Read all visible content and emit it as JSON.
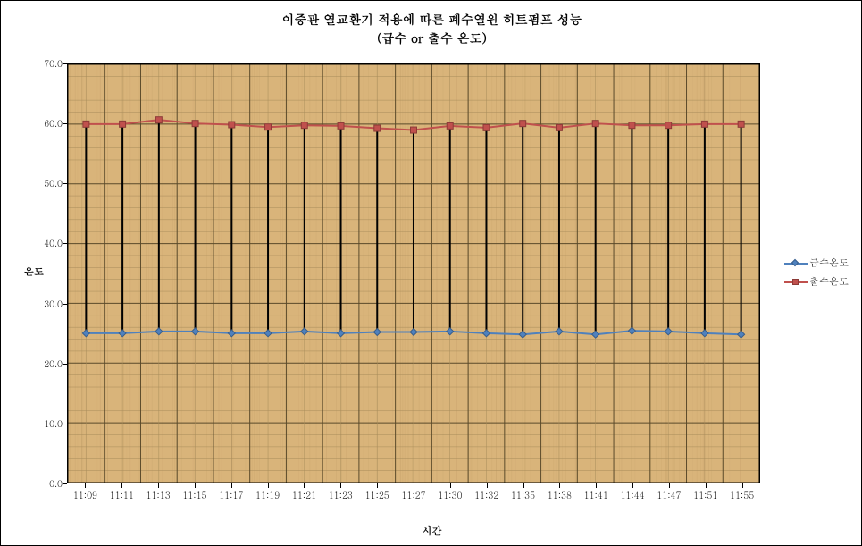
{
  "chart": {
    "type": "line",
    "title_line1": "이중관 열교환기 적용에 따른 폐수열원 히트펌프 성능",
    "title_line2": "(급수 or 출수 온도)",
    "title_fontsize": 14,
    "xlabel": "시간",
    "ylabel": "온도",
    "label_fontsize": 11,
    "tick_fontsize": 10,
    "plot_bg_color": "#d9b47a",
    "grid_major_color": "#5a4a2a",
    "grid_minor_color": "#a88c5a",
    "border_color": "#000000",
    "outer_bg_color": "#ffffff",
    "ylim": [
      0.0,
      70.0
    ],
    "ytick_step": 10.0,
    "yticks": [
      0.0,
      10.0,
      20.0,
      30.0,
      40.0,
      50.0,
      60.0,
      70.0
    ],
    "xticks": [
      "11:09",
      "11:11",
      "11:13",
      "11:15",
      "11:17",
      "11:19",
      "11:21",
      "11:23",
      "11:25",
      "11:27",
      "11:30",
      "11:32",
      "11:35",
      "11:38",
      "11:41",
      "11:44",
      "11:47",
      "11:51",
      "11:55"
    ],
    "series": [
      {
        "name": "급수온도",
        "color": "#4f81bd",
        "marker": "diamond",
        "marker_fill": "#4f81bd",
        "marker_border": "#385d8a",
        "line_width": 2,
        "values": [
          25.0,
          25.0,
          25.3,
          25.3,
          25.0,
          25.0,
          25.3,
          25.0,
          25.2,
          25.2,
          25.3,
          25.0,
          24.8,
          25.3,
          24.8,
          25.4,
          25.3,
          25.0,
          24.8
        ]
      },
      {
        "name": "출수온도",
        "color": "#c0504d",
        "marker": "square",
        "marker_fill": "#c0504d",
        "marker_border": "#8c3a37",
        "line_width": 2,
        "values": [
          60.0,
          60.0,
          60.7,
          60.1,
          59.9,
          59.5,
          59.8,
          59.7,
          59.3,
          59.0,
          59.7,
          59.4,
          60.1,
          59.4,
          60.1,
          59.8,
          59.8,
          60.0,
          60.0
        ]
      }
    ],
    "hilo_bar_color": "#000000",
    "hilo_bar_width": 2,
    "legend": {
      "position": "right",
      "items": [
        "급수온도",
        "출수온도"
      ]
    }
  }
}
